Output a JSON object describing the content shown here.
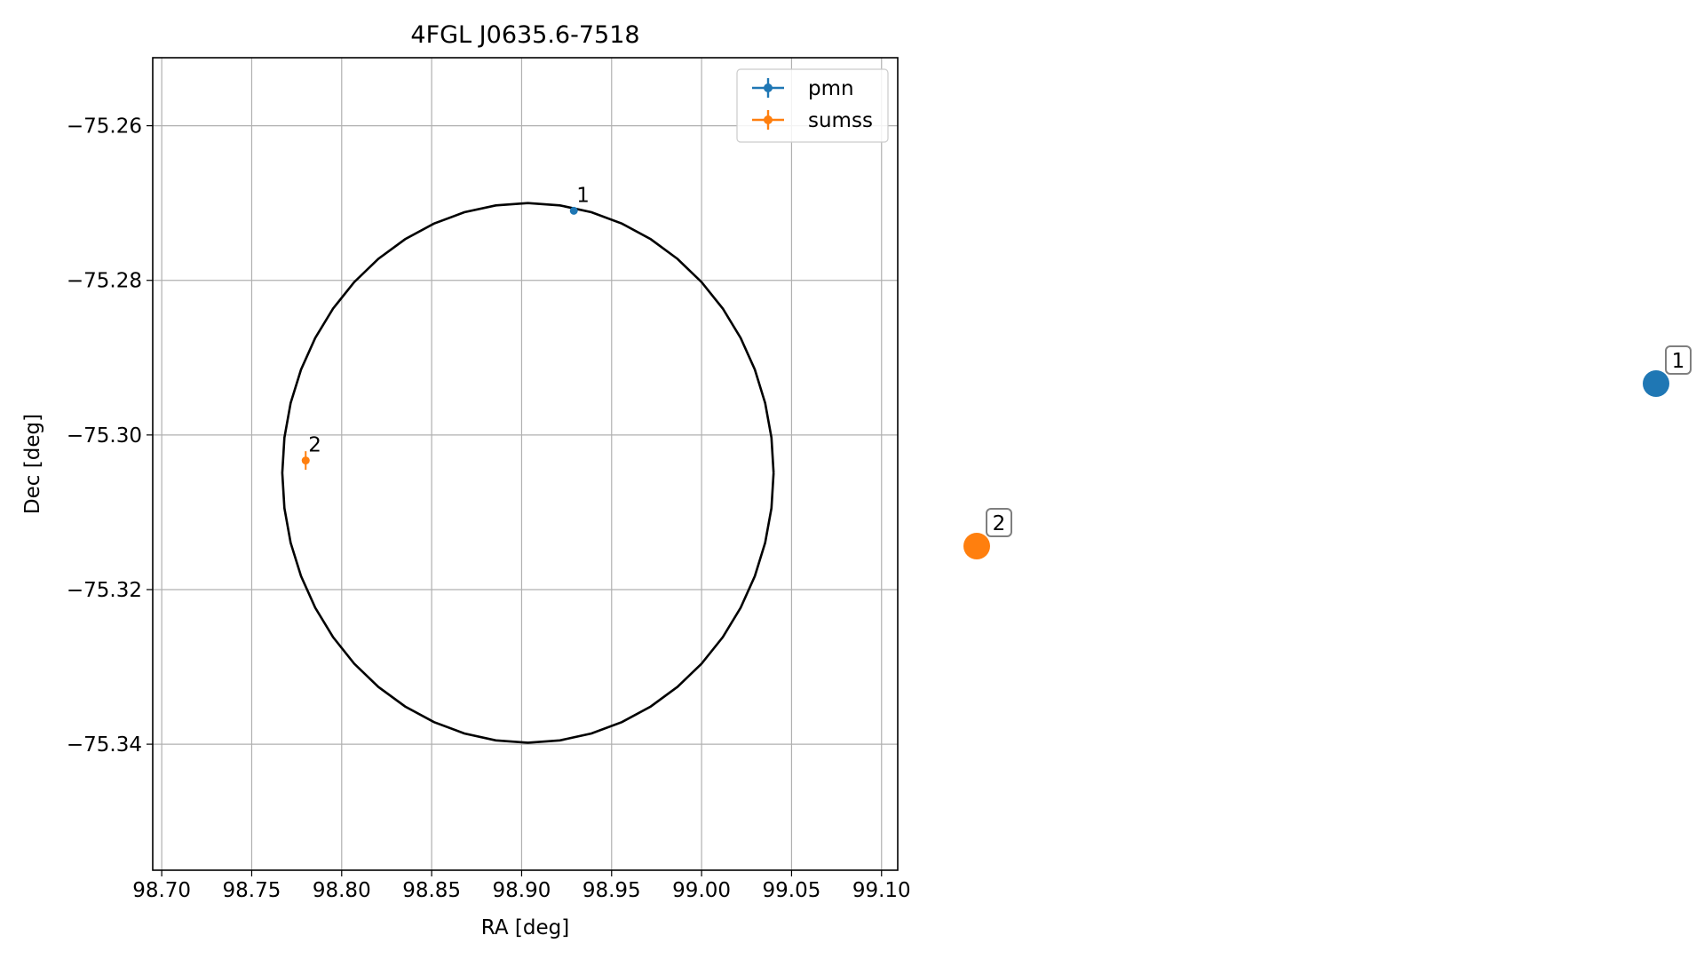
{
  "chart_data": {
    "type": "scatter",
    "title": "4FGL J0635.6-7518",
    "xlabel": "RA [deg]",
    "ylabel": "Dec [deg]",
    "xlim": [
      98.695,
      99.109
    ],
    "ylim": [
      -75.3563,
      -75.2512
    ],
    "x_ticks": [
      98.7,
      98.75,
      98.8,
      98.85,
      98.9,
      98.95,
      99.0,
      99.05,
      99.1
    ],
    "x_tick_labels": [
      "98.70",
      "98.75",
      "98.80",
      "98.85",
      "98.90",
      "98.95",
      "99.00",
      "99.05",
      "99.10"
    ],
    "y_ticks": [
      -75.26,
      -75.28,
      -75.3,
      -75.32,
      -75.34
    ],
    "y_tick_labels": [
      "−75.26",
      "−75.28",
      "−75.30",
      "−75.32",
      "−75.34"
    ],
    "grid": true,
    "legend": {
      "placement": "top-right",
      "entries": [
        "pmn",
        "sumss"
      ]
    },
    "ellipse": {
      "center_ra": 98.9035,
      "center_dec": -75.3049,
      "semi_ra": 0.1365,
      "semi_dec": 0.0349,
      "color": "#000000"
    },
    "series": [
      {
        "name": "pmn",
        "color": "#1f77b4",
        "points": [
          {
            "x": 98.929,
            "y": -75.271,
            "xerr": 0.0,
            "yerr": 0.0003,
            "label": "1"
          }
        ]
      },
      {
        "name": "sumss",
        "color": "#ff7f0e",
        "points": [
          {
            "x": 98.78,
            "y": -75.3033,
            "xerr": 0.001,
            "yerr": 0.0012,
            "label": "2"
          }
        ]
      }
    ],
    "side_markers": [
      {
        "label": "1",
        "color": "#1f77b4"
      },
      {
        "label": "2",
        "color": "#ff7f0e"
      }
    ]
  }
}
